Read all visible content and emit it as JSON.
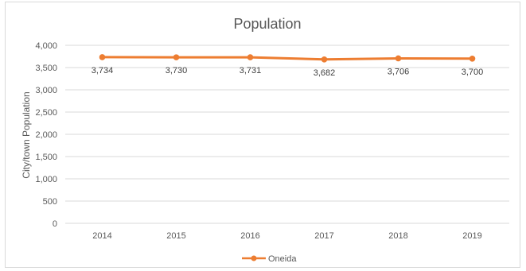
{
  "chart_data": {
    "type": "line",
    "title": "Population",
    "ylabel": "City/town Population",
    "xlabel": "",
    "categories": [
      "2014",
      "2015",
      "2016",
      "2017",
      "2018",
      "2019"
    ],
    "series": [
      {
        "name": "Oneida",
        "values": [
          3734,
          3730,
          3731,
          3682,
          3706,
          3700
        ],
        "color": "#ED7D31"
      }
    ],
    "data_labels": [
      "3,734",
      "3,730",
      "3,731",
      "3,682",
      "3,706",
      "3,700"
    ],
    "ylim": [
      0,
      4000
    ],
    "yticks": [
      0,
      500,
      1000,
      1500,
      2000,
      2500,
      3000,
      3500,
      4000
    ],
    "ytick_labels": [
      "0",
      "500",
      "1,000",
      "1,500",
      "2,000",
      "2,500",
      "3,000",
      "3,500",
      "4,000"
    ],
    "grid": true,
    "legend": "bottom",
    "gridline_color": "#d9d9d9"
  }
}
